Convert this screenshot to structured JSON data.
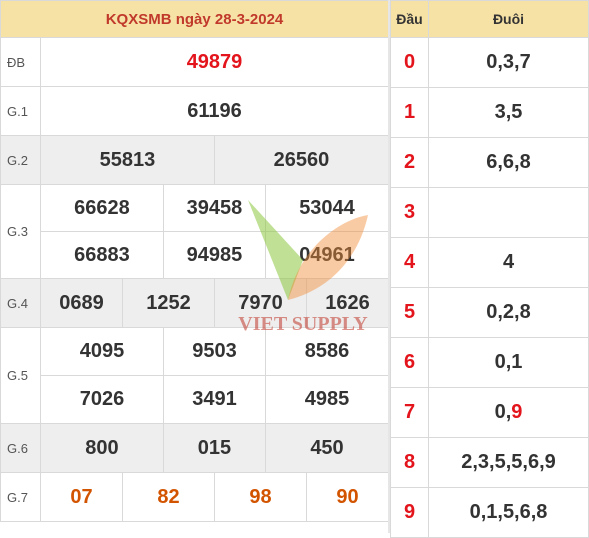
{
  "header": {
    "title": "KQXSMB ngày 28-3-2024",
    "dau": "Đầu",
    "duoi": "Đuôi"
  },
  "prizes": {
    "db": {
      "label": "ĐB",
      "numbers": [
        "49879"
      ]
    },
    "g1": {
      "label": "G.1",
      "numbers": [
        "61196"
      ]
    },
    "g2": {
      "label": "G.2",
      "numbers": [
        "55813",
        "26560"
      ]
    },
    "g3": {
      "label": "G.3",
      "numbers": [
        "66628",
        "39458",
        "53044",
        "66883",
        "94985",
        "04961"
      ]
    },
    "g4": {
      "label": "G.4",
      "numbers": [
        "0689",
        "1252",
        "7970",
        "1626"
      ]
    },
    "g5": {
      "label": "G.5",
      "numbers": [
        "4095",
        "9503",
        "8586",
        "7026",
        "3491",
        "4985"
      ]
    },
    "g6": {
      "label": "G.6",
      "numbers": [
        "800",
        "015",
        "450"
      ]
    },
    "g7": {
      "label": "G.7",
      "numbers": [
        "07",
        "82",
        "98",
        "90"
      ]
    }
  },
  "loto": [
    {
      "dau": "0",
      "duoi": "0,3,7"
    },
    {
      "dau": "1",
      "duoi": "3,5"
    },
    {
      "dau": "2",
      "duoi": "6,6,8"
    },
    {
      "dau": "3",
      "duoi": ""
    },
    {
      "dau": "4",
      "duoi": "4"
    },
    {
      "dau": "5",
      "duoi": "0,2,8"
    },
    {
      "dau": "6",
      "duoi": "0,1"
    },
    {
      "dau": "7",
      "duoi_prefix": "0,",
      "duoi_highlight": "9"
    },
    {
      "dau": "8",
      "duoi": "2,3,5,5,6,9"
    },
    {
      "dau": "9",
      "duoi": "0,1,5,6,8"
    }
  ],
  "watermark": {
    "text": "VIET SUPPLY",
    "colors": {
      "green": "#8dc63f",
      "orange": "#f28c38",
      "red": "#c0392b"
    }
  }
}
